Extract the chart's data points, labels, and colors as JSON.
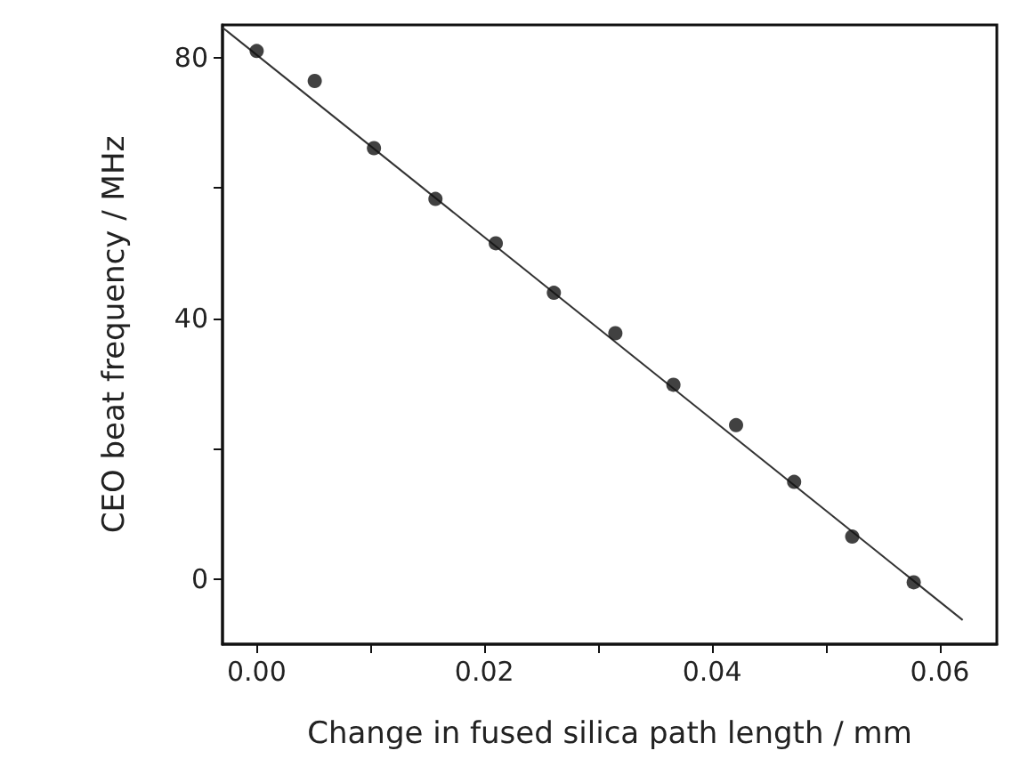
{
  "chart_data": {
    "type": "scatter",
    "xlabel": "Change in fused silica path length / mm",
    "ylabel": "CEO beat frequency / MHz",
    "xlim": [
      -0.003,
      0.065
    ],
    "ylim": [
      -10,
      85
    ],
    "xticks": [
      {
        "value": 0,
        "label": "0.00"
      },
      {
        "value": 0.01,
        "label": null
      },
      {
        "value": 0.02,
        "label": "0.02"
      },
      {
        "value": 0.03,
        "label": null
      },
      {
        "value": 0.04,
        "label": "0.04"
      },
      {
        "value": 0.05,
        "label": null
      },
      {
        "value": 0.06,
        "label": "0.06"
      }
    ],
    "yticks": [
      0,
      {
        "value": 20,
        "label": null
      },
      40,
      {
        "value": 60,
        "label": null
      },
      80
    ],
    "grid": false,
    "marker": "circle",
    "series": [
      {
        "color": "#111111",
        "x": [
          0,
          0.0051,
          0.0103,
          0.0157,
          0.021,
          0.0261,
          0.0315,
          0.0366,
          0.0421,
          0.0472,
          0.0523,
          0.0577
        ],
        "values": [
          81.0,
          76.4,
          66.1,
          58.3,
          51.5,
          43.9,
          37.7,
          29.8,
          23.6,
          14.9,
          6.5,
          -0.5
        ]
      },
      {
        "type": "line",
        "color": "#333333",
        "marker": "none",
        "line_style": "solid",
        "x": [
          -0.003,
          0.062
        ],
        "values": [
          84.6,
          -6.3
        ]
      }
    ]
  }
}
